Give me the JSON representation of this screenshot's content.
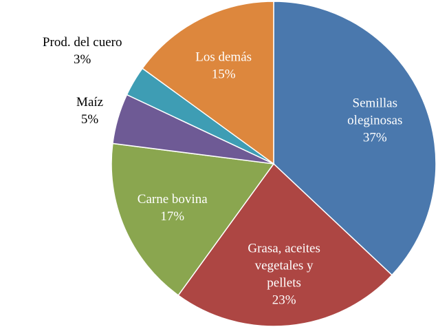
{
  "chart_data": {
    "type": "pie",
    "categories": [
      "Semillas\noleginosas",
      "Grasa, aceites\nvegetales y\npellets",
      "Carne bovina",
      "Maíz",
      "Prod. del cuero",
      "Los demás"
    ],
    "values": [
      37,
      23,
      17,
      5,
      3,
      15
    ],
    "value_labels": [
      "37%",
      "23%",
      "17%",
      "5%",
      "3%",
      "15%"
    ],
    "colors": [
      "#4a78ad",
      "#ad4643",
      "#8aa64f",
      "#6e5a95",
      "#3e9db4",
      "#dd873d"
    ]
  }
}
